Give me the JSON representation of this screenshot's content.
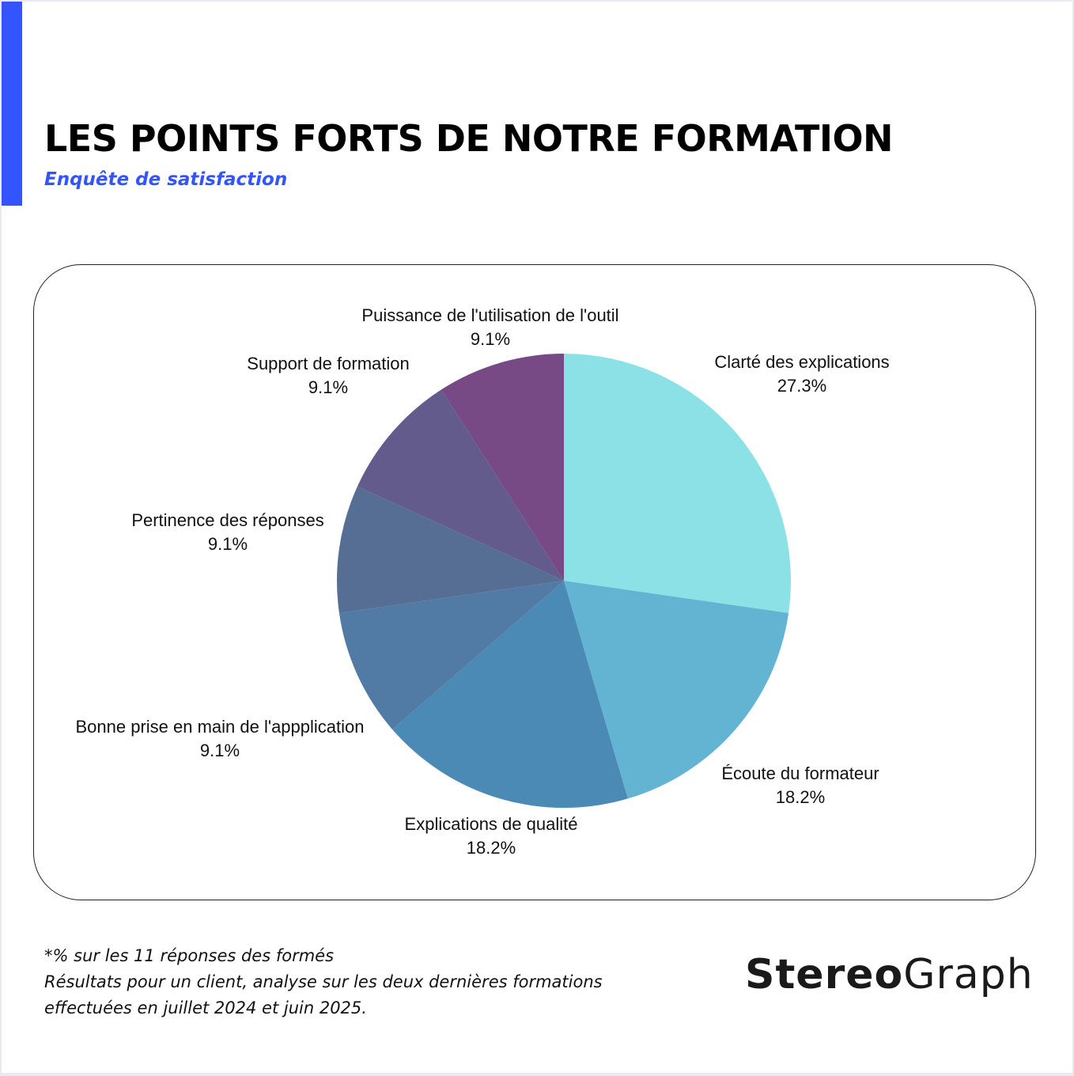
{
  "header": {
    "title": "LES POINTS FORTS DE NOTRE FORMATION",
    "subtitle": "Enquête de satisfaction"
  },
  "chart_data": {
    "type": "pie",
    "start": "top, clockwise",
    "slices": [
      {
        "label": "Clarté des explications",
        "value": 27.3,
        "text": "27.3%",
        "color": "#8ce1e6"
      },
      {
        "label": "Écoute du formateur",
        "value": 18.2,
        "text": "18.2%",
        "color": "#63b3d2"
      },
      {
        "label": "Explications de qualité",
        "value": 18.2,
        "text": "18.2%",
        "color": "#4a8ab5"
      },
      {
        "label": "Bonne prise en main de l'appplication",
        "value": 9.1,
        "text": "9.1%",
        "color": "#517aa5"
      },
      {
        "label": "Pertinence des réponses",
        "value": 9.1,
        "text": "9.1%",
        "color": "#566d94"
      },
      {
        "label": "Support de formation",
        "value": 9.1,
        "text": "9.1%",
        "color": "#625b8c"
      },
      {
        "label": "Puissance de l'utilisation de l'outil",
        "value": 9.1,
        "text": "9.1%",
        "color": "#774a86"
      }
    ]
  },
  "footer": {
    "lines": [
      "*% sur les 11 réponses des formés",
      "Résultats pour un client, analyse sur les deux dernières formations",
      "effectuées en juillet 2024 et juin 2025."
    ]
  },
  "logo": {
    "part1": "Stereo",
    "part2": "Graph"
  }
}
